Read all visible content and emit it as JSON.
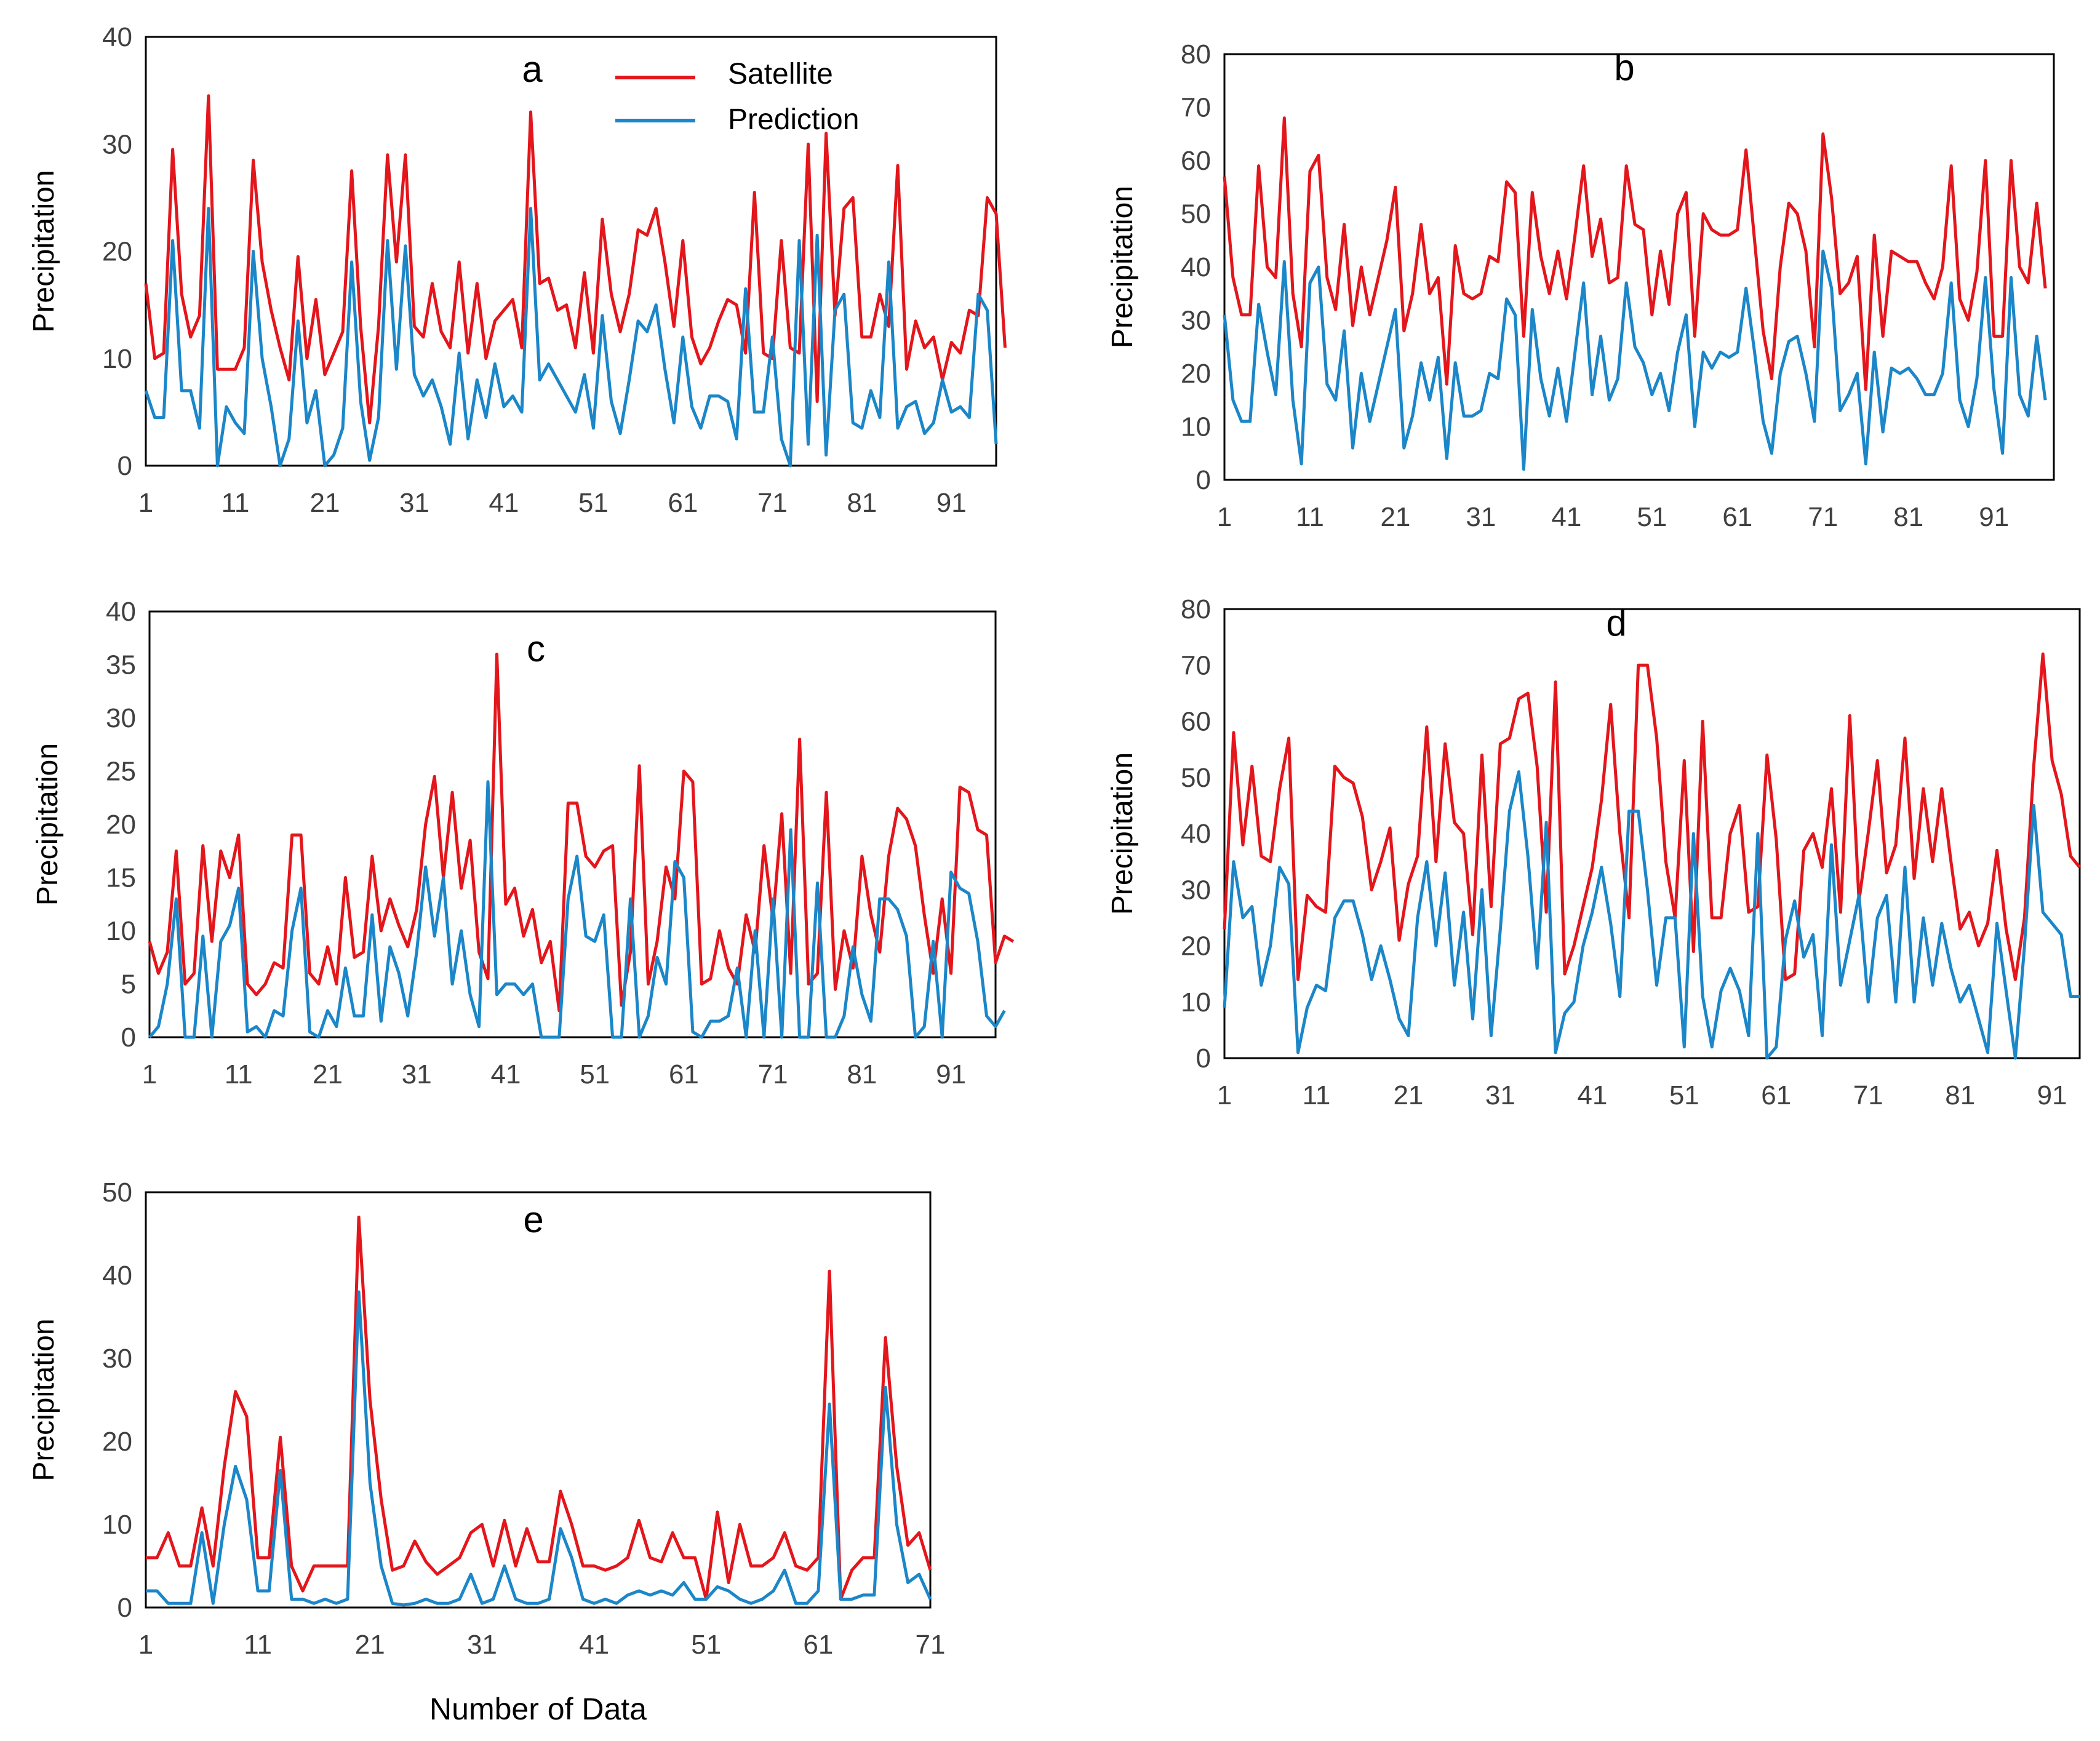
{
  "figure": {
    "xlabel": "Number of Data",
    "legend": {
      "satellite": "Satellite",
      "prediction": "Prediction"
    },
    "colors": {
      "satellite": "#e3161c",
      "prediction": "#1b86c8",
      "axis": "#000000",
      "tick_text": "#404040"
    }
  },
  "chart_data": [
    {
      "id": "a",
      "type": "line",
      "title": "a",
      "ylabel": "Precipitation",
      "ylim": [
        0,
        40
      ],
      "yticks": [
        0,
        10,
        20,
        30,
        40
      ],
      "xlim": [
        1,
        96
      ],
      "xticks": [
        1,
        11,
        21,
        31,
        41,
        51,
        61,
        71,
        81,
        91
      ],
      "legend": true,
      "legend_position": "top-center",
      "series": [
        {
          "name": "Satellite",
          "color": "#e3161c",
          "values": [
            17,
            10,
            10.5,
            29.5,
            16,
            12,
            14,
            34.5,
            9,
            9,
            9,
            11,
            28.5,
            19,
            14.5,
            11,
            8,
            19.5,
            10,
            15.5,
            8.5,
            10.5,
            12.5,
            27.5,
            13,
            4,
            13,
            29,
            19,
            29,
            13,
            12,
            17,
            12.5,
            11,
            19,
            10.5,
            17,
            10,
            13.5,
            14.5,
            15.5,
            11,
            33,
            17,
            17.5,
            14.5,
            15,
            11,
            18,
            10.5,
            23,
            16,
            12.5,
            16,
            22,
            21.5,
            24,
            19,
            13,
            21,
            12,
            9.5,
            11,
            13.5,
            15.5,
            15,
            10.5,
            25.5,
            10.5,
            10,
            21,
            11,
            10.5,
            30,
            6,
            31,
            14,
            24,
            25,
            12,
            12,
            16,
            13,
            28,
            9,
            13.5,
            11,
            12,
            8,
            11.5,
            10.5,
            14.5,
            14,
            25,
            23.5,
            11
          ]
        },
        {
          "name": "Prediction",
          "color": "#1b86c8",
          "values": [
            7,
            4.5,
            4.5,
            21,
            7,
            7,
            3.5,
            24,
            0,
            5.5,
            4,
            3,
            20,
            10,
            5.5,
            0,
            2.5,
            13.5,
            4,
            7,
            0,
            1,
            3.5,
            19,
            6,
            0.5,
            4.5,
            21,
            9,
            20.5,
            8.5,
            6.5,
            8,
            5.5,
            2,
            10.5,
            2.5,
            8,
            4.5,
            9.5,
            5.5,
            6.5,
            5,
            24,
            8,
            9.5,
            8,
            6.5,
            5,
            8.5,
            3.5,
            14,
            6,
            3,
            8,
            13.5,
            12.5,
            15,
            9,
            4,
            12,
            5.5,
            3.5,
            6.5,
            6.5,
            6,
            2.5,
            16.5,
            5,
            5,
            12,
            2.5,
            0,
            21,
            2,
            21.5,
            1,
            14.5,
            16,
            4,
            3.5,
            7,
            4.5,
            19,
            3.5,
            5.5,
            6,
            3,
            4,
            8,
            5,
            5.5,
            4.5,
            16,
            14.5,
            2
          ]
        }
      ]
    },
    {
      "id": "b",
      "type": "line",
      "title": "b",
      "ylabel": "Precipitation",
      "ylim": [
        0,
        80
      ],
      "yticks": [
        0,
        10,
        20,
        30,
        40,
        50,
        60,
        70,
        80
      ],
      "xlim": [
        1,
        98
      ],
      "xticks": [
        1,
        11,
        21,
        31,
        41,
        51,
        61,
        71,
        81,
        91
      ],
      "legend": false,
      "series": [
        {
          "name": "Satellite",
          "color": "#e3161c",
          "values": [
            57,
            38,
            31,
            31,
            59,
            40,
            38,
            68,
            35,
            25,
            58,
            61,
            38,
            32,
            48,
            29,
            40,
            31,
            38,
            45,
            55,
            28,
            35,
            48,
            35,
            38,
            18,
            44,
            35,
            34,
            35,
            42,
            41,
            56,
            54,
            27,
            54,
            42,
            35,
            43,
            34,
            46,
            59,
            42,
            49,
            37,
            38,
            59,
            48,
            47,
            31,
            43,
            33,
            50,
            54,
            27,
            50,
            47,
            46,
            46,
            47,
            62,
            45,
            28,
            19,
            40,
            52,
            50,
            43,
            25,
            65,
            53,
            35,
            37,
            42,
            17,
            46,
            27,
            43,
            42,
            41,
            41,
            37,
            34,
            40,
            59,
            34,
            30,
            39,
            60,
            27,
            27,
            60,
            40,
            37,
            52,
            36
          ]
        },
        {
          "name": "Prediction",
          "color": "#1b86c8",
          "values": [
            31,
            15,
            11,
            11,
            33,
            24,
            16,
            41,
            15,
            3,
            37,
            40,
            18,
            15,
            28,
            6,
            20,
            11,
            18,
            25,
            32,
            6,
            12,
            22,
            15,
            23,
            4,
            22,
            12,
            12,
            13,
            20,
            19,
            34,
            31,
            2,
            32,
            19,
            12,
            21,
            11,
            24,
            37,
            16,
            27,
            15,
            19,
            37,
            25,
            22,
            16,
            20,
            13,
            24,
            31,
            10,
            24,
            21,
            24,
            23,
            24,
            36,
            24,
            11,
            5,
            20,
            26,
            27,
            20,
            11,
            43,
            36,
            13,
            16,
            20,
            3,
            24,
            9,
            21,
            20,
            21,
            19,
            16,
            16,
            20,
            37,
            15,
            10,
            19,
            38,
            17,
            5,
            38,
            16,
            12,
            27,
            15
          ]
        }
      ]
    },
    {
      "id": "c",
      "type": "line",
      "title": "c",
      "ylabel": "Precipitation",
      "ylim": [
        0,
        40
      ],
      "yticks": [
        0,
        5,
        10,
        15,
        20,
        25,
        30,
        35,
        40
      ],
      "xlim": [
        1,
        96
      ],
      "xticks": [
        1,
        11,
        21,
        31,
        41,
        51,
        61,
        71,
        81,
        91
      ],
      "legend": false,
      "series": [
        {
          "name": "Satellite",
          "color": "#e3161c",
          "values": [
            9,
            6,
            8,
            17.5,
            5,
            6,
            18,
            9,
            17.5,
            15,
            19,
            5,
            4,
            5,
            7,
            6.5,
            19,
            19,
            6,
            5,
            8.5,
            5,
            15,
            7.5,
            8,
            17,
            10,
            13,
            10.5,
            8.5,
            12,
            20,
            24.5,
            15,
            23,
            14,
            18.5,
            8,
            5.5,
            36,
            12.5,
            14,
            9.5,
            12,
            7,
            9,
            2.5,
            22,
            22,
            17,
            16,
            17.5,
            18,
            3,
            8,
            25.5,
            5,
            9,
            16,
            13,
            25,
            24,
            5,
            5.5,
            10,
            6.5,
            5,
            11.5,
            8,
            18,
            11,
            21,
            6,
            28,
            5,
            6,
            23,
            4.5,
            10,
            6.5,
            17,
            11.5,
            8,
            17,
            21.5,
            20.5,
            18,
            11.5,
            6,
            13,
            6,
            23.5,
            23,
            19.5,
            19,
            7,
            9.5,
            9
          ]
        },
        {
          "name": "Prediction",
          "color": "#1b86c8",
          "values": [
            0,
            1,
            5,
            13,
            0,
            0,
            9.5,
            0,
            9,
            10.5,
            14,
            0.5,
            1,
            0,
            2.5,
            2,
            10,
            14,
            0.5,
            0,
            2.5,
            1,
            6.5,
            2,
            2,
            11.5,
            1.5,
            8.5,
            6,
            2,
            8,
            16,
            9.5,
            15,
            5,
            10,
            4,
            1,
            24,
            4,
            5,
            5,
            4,
            5,
            0,
            0,
            0,
            13,
            17,
            9.5,
            9,
            11.5,
            0,
            0,
            13,
            0,
            2,
            7.5,
            5,
            16.5,
            15,
            0.5,
            0,
            1.5,
            1.5,
            2,
            6.5,
            0,
            10,
            0,
            13,
            0,
            19.5,
            0,
            0,
            14.5,
            0,
            0,
            2,
            8.5,
            4,
            1.5,
            13,
            13,
            12,
            9.5,
            0,
            1,
            9,
            0,
            15.5,
            14,
            13.5,
            9,
            2,
            1,
            2.5
          ]
        }
      ]
    },
    {
      "id": "d",
      "type": "line",
      "title": "d",
      "ylabel": "Precipitation",
      "ylim": [
        0,
        80
      ],
      "yticks": [
        0,
        10,
        20,
        30,
        40,
        50,
        60,
        70,
        80
      ],
      "xlim": [
        1,
        94
      ],
      "xticks": [
        1,
        11,
        21,
        31,
        41,
        51,
        61,
        71,
        81,
        91
      ],
      "legend": false,
      "series": [
        {
          "name": "Satellite",
          "color": "#e3161c",
          "values": [
            23,
            58,
            38,
            52,
            36,
            35,
            48,
            57,
            14,
            29,
            27,
            26,
            52,
            50,
            49,
            43,
            30,
            35,
            41,
            21,
            31,
            36,
            59,
            35,
            56,
            42,
            40,
            22,
            54,
            27,
            56,
            57,
            64,
            65,
            52,
            26,
            67,
            15,
            20,
            27,
            34,
            46,
            63,
            40,
            25,
            70,
            70,
            57,
            35,
            25,
            53,
            19,
            60,
            25,
            25,
            40,
            45,
            26,
            27,
            54,
            39,
            14,
            15,
            37,
            40,
            34,
            48,
            26,
            61,
            28,
            40,
            53,
            33,
            38,
            57,
            32,
            48,
            35,
            48,
            35,
            23,
            26,
            20,
            24,
            37,
            23,
            14,
            25,
            52,
            72,
            53,
            47,
            36,
            34
          ]
        },
        {
          "name": "Prediction",
          "color": "#1b86c8",
          "values": [
            9,
            35,
            25,
            27,
            13,
            20,
            34,
            31,
            1,
            9,
            13,
            12,
            25,
            28,
            28,
            22,
            14,
            20,
            14,
            7,
            4,
            25,
            35,
            20,
            33,
            13,
            26,
            7,
            30,
            4,
            23,
            44,
            51,
            36,
            16,
            42,
            1,
            8,
            10,
            20,
            26,
            34,
            24,
            11,
            44,
            44,
            30,
            13,
            25,
            25,
            2,
            40,
            11,
            2,
            12,
            16,
            12,
            4,
            40,
            0,
            2,
            21,
            28,
            18,
            22,
            4,
            38,
            13,
            21,
            29,
            10,
            25,
            29,
            10,
            34,
            10,
            25,
            13,
            24,
            16,
            10,
            13,
            7,
            1,
            24,
            12,
            0,
            20,
            45,
            26,
            24,
            22,
            11,
            11
          ]
        }
      ]
    },
    {
      "id": "e",
      "type": "line",
      "title": "e",
      "ylabel": "Precipitation",
      "xlabel": "Number of Data",
      "ylim": [
        0,
        50
      ],
      "yticks": [
        0,
        10,
        20,
        30,
        40,
        50
      ],
      "xlim": [
        1,
        71
      ],
      "xticks": [
        1,
        11,
        21,
        31,
        41,
        51,
        61,
        71
      ],
      "legend": false,
      "series": [
        {
          "name": "Satellite",
          "color": "#e3161c",
          "values": [
            6,
            6,
            9,
            5,
            5,
            12,
            5,
            17,
            26,
            23,
            6,
            6,
            20.5,
            5,
            2,
            5,
            5,
            5,
            5,
            47,
            25,
            13,
            4.5,
            5,
            8,
            5.5,
            4,
            5,
            6,
            9,
            10,
            5,
            10.5,
            5,
            9.5,
            5.5,
            5.5,
            14,
            10,
            5,
            5,
            4.5,
            5,
            6,
            10.5,
            6,
            5.5,
            9,
            6,
            6,
            1,
            11.5,
            3,
            10,
            5,
            5,
            6,
            9,
            5,
            4.5,
            6,
            40.5,
            1,
            4.5,
            6,
            6,
            32.5,
            17,
            7.5,
            9,
            4.5
          ]
        },
        {
          "name": "Prediction",
          "color": "#1b86c8",
          "values": [
            2,
            2,
            0.5,
            0.5,
            0.5,
            9,
            0.5,
            10,
            17,
            13,
            2,
            2,
            16.5,
            1,
            1,
            0.5,
            1,
            0.5,
            1,
            38,
            15,
            5,
            0.5,
            0.3,
            0.5,
            1,
            0.5,
            0.5,
            1,
            4,
            0.5,
            1,
            5,
            1,
            0.5,
            0.5,
            1,
            9.5,
            6,
            1,
            0.5,
            1,
            0.5,
            1.5,
            2,
            1.5,
            2,
            1.5,
            3,
            1,
            1,
            2.5,
            2,
            1,
            0.5,
            1,
            2,
            4.5,
            0.5,
            0.5,
            2,
            24.5,
            1,
            1,
            1.5,
            1.5,
            26.5,
            10,
            3,
            4,
            1
          ]
        }
      ]
    }
  ]
}
